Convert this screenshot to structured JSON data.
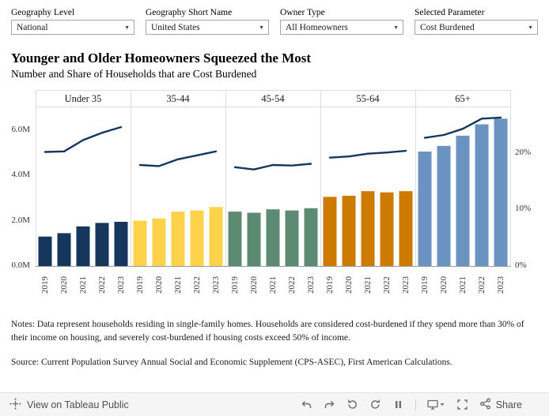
{
  "filters": [
    {
      "label": "Geography Level",
      "value": "National"
    },
    {
      "label": "Geography Short Name",
      "value": "United States"
    },
    {
      "label": "Owner Type",
      "value": "All Homeowners"
    },
    {
      "label": "Selected Parameter",
      "value": "Cost Burdened"
    }
  ],
  "title": "Younger and Older Homeowners Squeezed the Most",
  "subtitle": "Number and Share of Households that are Cost Burdened",
  "chart_data": {
    "type": "bar",
    "description": "Grouped bar chart with overlaid line per age-group panel; bars = number of cost-burdened homeowner households (left axis, millions), line = share of households (right axis, percent)",
    "years": [
      "2019",
      "2020",
      "2021",
      "2022",
      "2023"
    ],
    "panels": [
      {
        "label": "Under 35",
        "color": "#16365d",
        "bars_millions": [
          1.3,
          1.45,
          1.75,
          1.9,
          1.95
        ],
        "line_percent": [
          20.2,
          20.3,
          22.3,
          23.6,
          24.6
        ]
      },
      {
        "label": "35-44",
        "color": "#ffd24c",
        "bars_millions": [
          2.0,
          2.1,
          2.4,
          2.45,
          2.6
        ],
        "line_percent": [
          17.9,
          17.7,
          18.9,
          19.6,
          20.3
        ]
      },
      {
        "label": "45-54",
        "color": "#5c8a72",
        "bars_millions": [
          2.4,
          2.35,
          2.5,
          2.45,
          2.55
        ],
        "line_percent": [
          17.5,
          17.1,
          17.9,
          17.8,
          18.1
        ]
      },
      {
        "label": "55-64",
        "color": "#cc7a00",
        "bars_millions": [
          3.05,
          3.1,
          3.3,
          3.25,
          3.3
        ],
        "line_percent": [
          19.2,
          19.4,
          19.9,
          20.1,
          20.4
        ]
      },
      {
        "label": "65+",
        "color": "#6b93c1",
        "bars_millions": [
          5.05,
          5.3,
          5.75,
          6.25,
          6.5
        ],
        "line_percent": [
          22.7,
          23.2,
          24.3,
          26.1,
          26.3
        ]
      }
    ],
    "line_color": "#16365d",
    "left_axis": {
      "ticks": [
        {
          "label": "0.0M",
          "value": 0
        },
        {
          "label": "2.0M",
          "value": 2
        },
        {
          "label": "4.0M",
          "value": 4
        },
        {
          "label": "6.0M",
          "value": 6
        }
      ],
      "max": 7.0
    },
    "right_axis": {
      "ticks": [
        {
          "label": "0%",
          "value": 0
        },
        {
          "label": "10%",
          "value": 10
        },
        {
          "label": "20%",
          "value": 20
        }
      ],
      "max": 28.1
    },
    "grid": false,
    "legend": false
  },
  "notes": "Notes: Data represent households residing in single-family homes. Households are considered cost-burdened if they spend more than 30% of their income on housing, and severely cost-burdened if housing costs exceed 50% of income.",
  "source": "Source: Current Population Survey Annual Social and Economic Supplement (CPS-ASEC), First American Calculations.",
  "footer": {
    "view_label": "View on Tableau Public",
    "share_label": "Share",
    "icons": [
      "tableau-logo-icon",
      "undo-icon",
      "redo-icon",
      "revert-icon",
      "refresh-icon",
      "pause-icon",
      "download-icon",
      "fullscreen-icon",
      "share-icon"
    ]
  }
}
